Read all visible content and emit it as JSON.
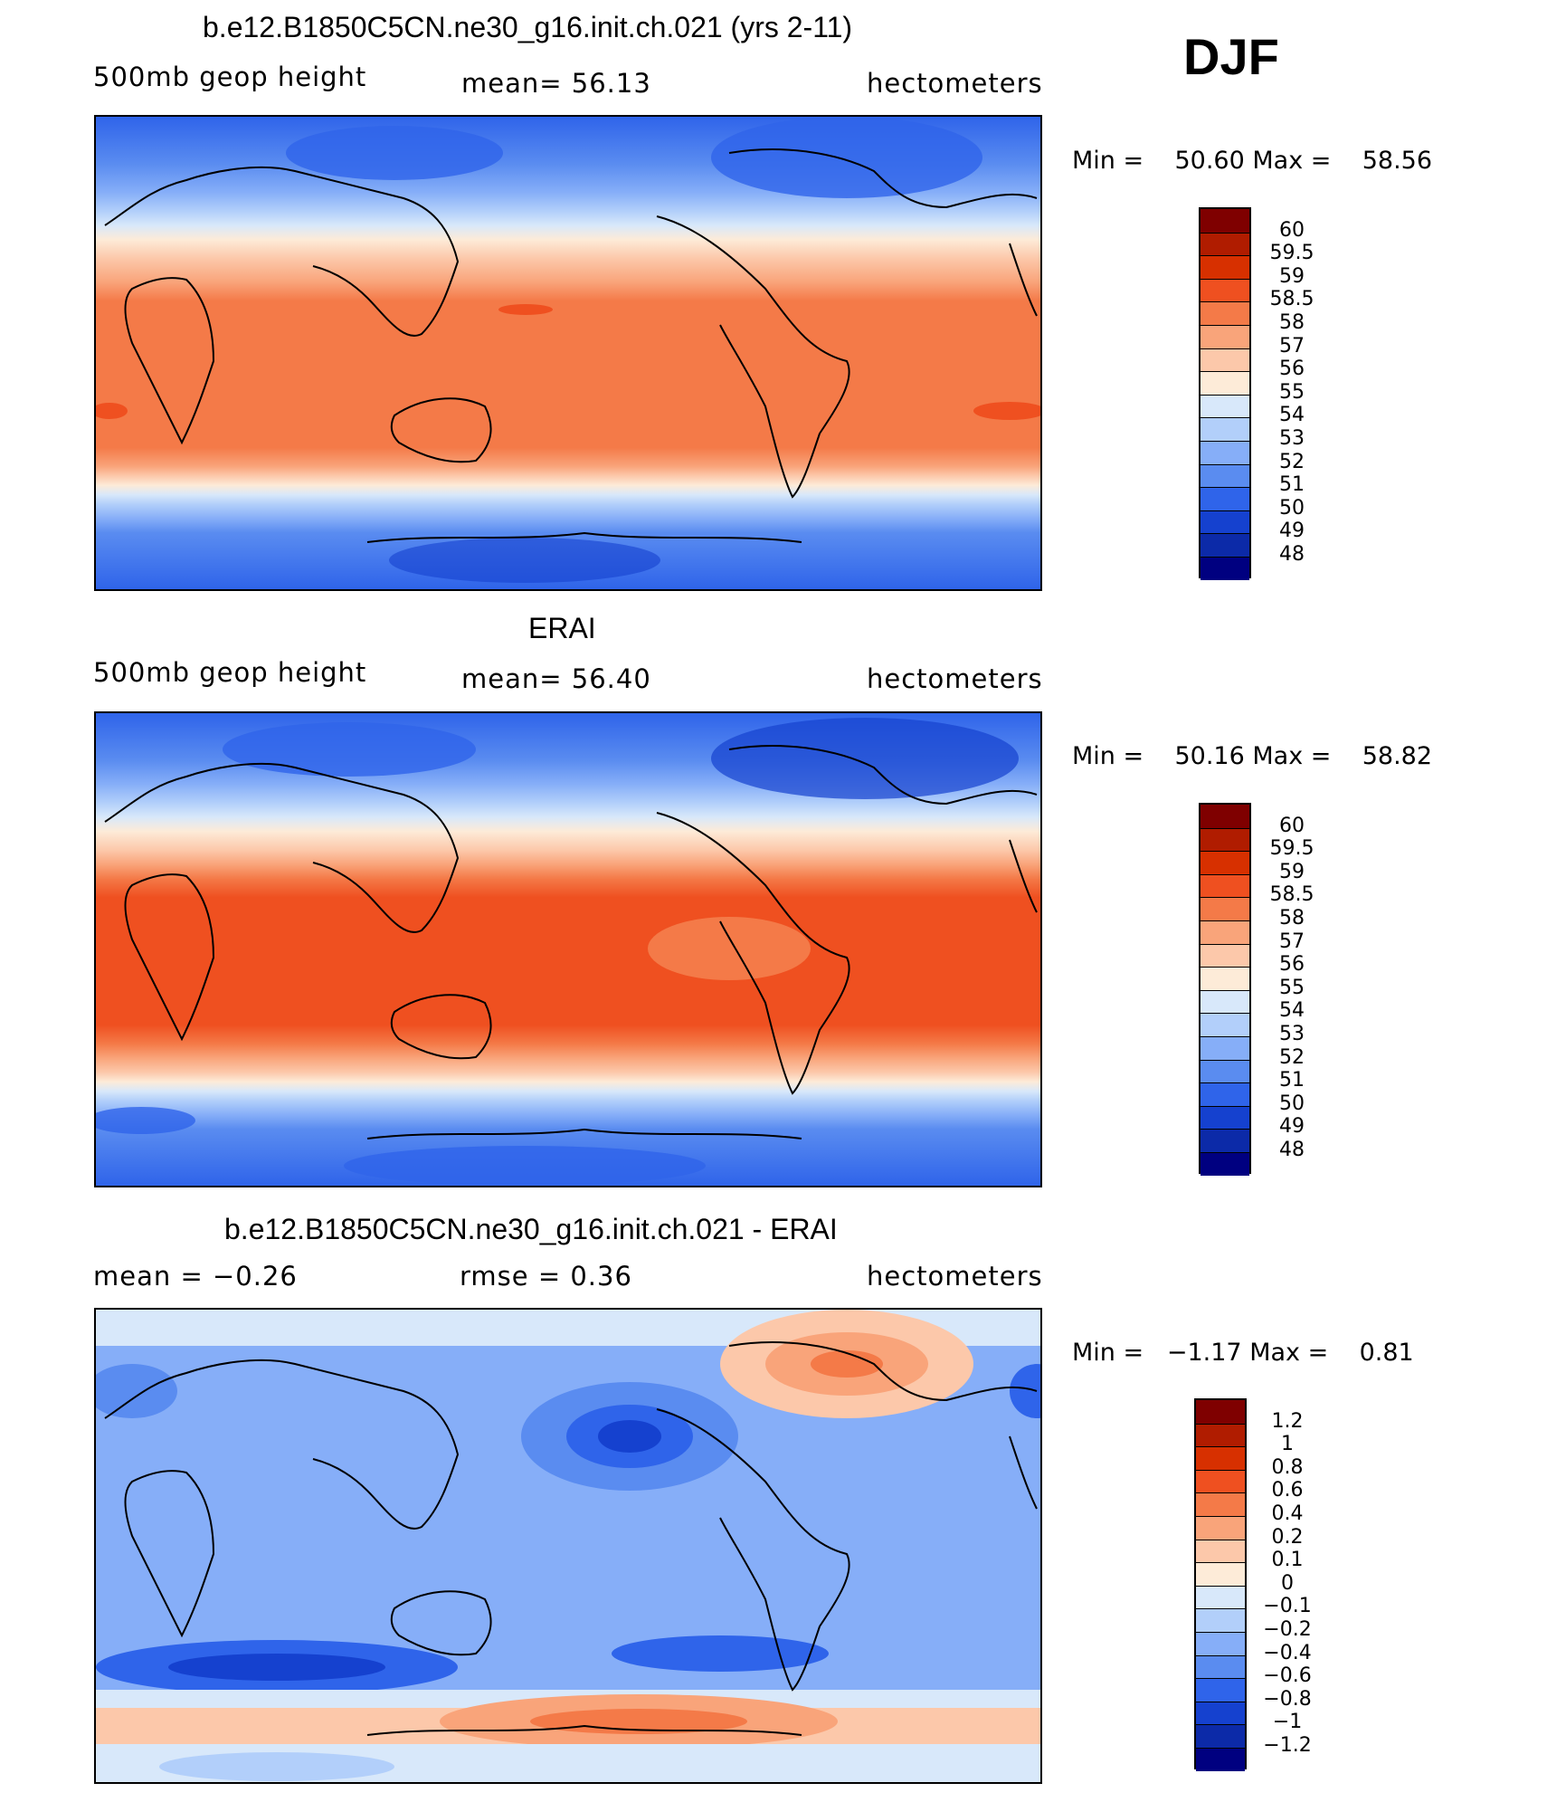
{
  "season": "DJF",
  "panels": [
    {
      "title": "b.e12.B1850C5CN.ne30_g16.init.ch.021 (yrs 2-11)",
      "left_label": "500mb  geop  height",
      "mid_label": "mean=   56.13",
      "right_label": "hectometers",
      "min_label": "Min  =",
      "min_value": "50.60",
      "max_label": "Max  =",
      "max_value": "58.56",
      "colorbar_labels": [
        "60",
        "59.5",
        "59",
        "58.5",
        "58",
        "57",
        "56",
        "55",
        "54",
        "53",
        "52",
        "51",
        "50",
        "49",
        "48"
      ],
      "colors": [
        "#7f0000",
        "#b01c00",
        "#d73000",
        "#ef5020",
        "#f47a48",
        "#f9a47a",
        "#fcc8aa",
        "#fdebd8",
        "#d8e8fa",
        "#b2cffa",
        "#86aef8",
        "#5a8cf0",
        "#2f64ea",
        "#1541cf",
        "#0c2aa8",
        "#000080"
      ]
    },
    {
      "title": "ERAI",
      "left_label": "500mb  geop  height",
      "mid_label": "mean=   56.40",
      "right_label": "hectometers",
      "min_label": "Min  =",
      "min_value": "50.16",
      "max_label": "Max  =",
      "max_value": "58.82",
      "colorbar_labels": [
        "60",
        "59.5",
        "59",
        "58.5",
        "58",
        "57",
        "56",
        "55",
        "54",
        "53",
        "52",
        "51",
        "50",
        "49",
        "48"
      ],
      "colors": [
        "#7f0000",
        "#b01c00",
        "#d73000",
        "#ef5020",
        "#f47a48",
        "#f9a47a",
        "#fcc8aa",
        "#fdebd8",
        "#d8e8fa",
        "#b2cffa",
        "#86aef8",
        "#5a8cf0",
        "#2f64ea",
        "#1541cf",
        "#0c2aa8",
        "#000080"
      ]
    },
    {
      "title": "b.e12.B1850C5CN.ne30_g16.init.ch.021 - ERAI",
      "left_label": "mean  =     −0.26",
      "mid_label": "rmse  =     0.36",
      "right_label": "hectometers",
      "min_label": "Min  =",
      "min_value": "−1.17",
      "max_label": "Max  =",
      "max_value": "0.81",
      "colorbar_labels": [
        "1.2",
        "1",
        "0.8",
        "0.6",
        "0.4",
        "0.2",
        "0.1",
        "0",
        "−0.1",
        "−0.2",
        "−0.4",
        "−0.6",
        "−0.8",
        "−1",
        "−1.2"
      ],
      "colors": [
        "#7f0000",
        "#b01c00",
        "#d73000",
        "#ef5020",
        "#f47a48",
        "#f9a47a",
        "#fcc8aa",
        "#fdebd8",
        "#d8e8fa",
        "#b2cffa",
        "#86aef8",
        "#5a8cf0",
        "#2f64ea",
        "#1541cf",
        "#0c2aa8",
        "#000080"
      ]
    }
  ]
}
